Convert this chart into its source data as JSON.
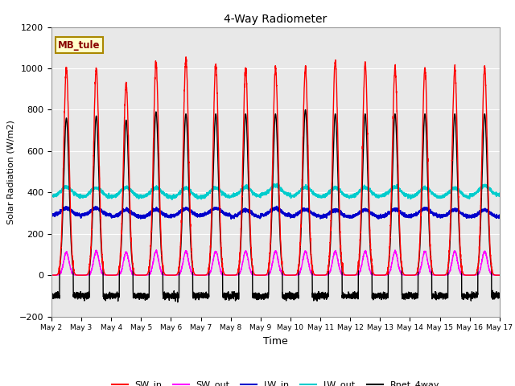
{
  "title": "4-Way Radiometer",
  "xlabel": "Time",
  "ylabel": "Solar Radiation (W/m2)",
  "ylim": [
    -200,
    1200
  ],
  "yticks": [
    -200,
    0,
    200,
    400,
    600,
    800,
    1000,
    1200
  ],
  "start_day": 2,
  "end_day": 17,
  "n_days": 15,
  "station_label": "MB_tule",
  "colors": {
    "SW_in": "#ff0000",
    "SW_out": "#ff00ff",
    "LW_in": "#0000cc",
    "LW_out": "#00cccc",
    "Rnet_4way": "#000000"
  },
  "legend_labels": [
    "SW_in",
    "SW_out",
    "LW_in",
    "LW_out",
    "Rnet_4way"
  ],
  "background_color": "#e8e8e8",
  "figure_bg": "#ffffff",
  "grid_color": "#ffffff",
  "SW_in_peaks": [
    1000,
    1000,
    930,
    1025,
    1045,
    1020,
    1000,
    1000,
    1000,
    1035,
    1020,
    1000,
    1000,
    1000,
    1000
  ],
  "SW_out_peaks": [
    110,
    115,
    110,
    115,
    115,
    115,
    115,
    115,
    115,
    115,
    115,
    115,
    115,
    115,
    115
  ],
  "LW_in_base": 285,
  "LW_out_base": 385,
  "Rnet_peaks": [
    760,
    770,
    750,
    790,
    780,
    780,
    780,
    780,
    800,
    780,
    780,
    780,
    780,
    780,
    780
  ],
  "Rnet_night": -100,
  "pts_per_day": 288
}
